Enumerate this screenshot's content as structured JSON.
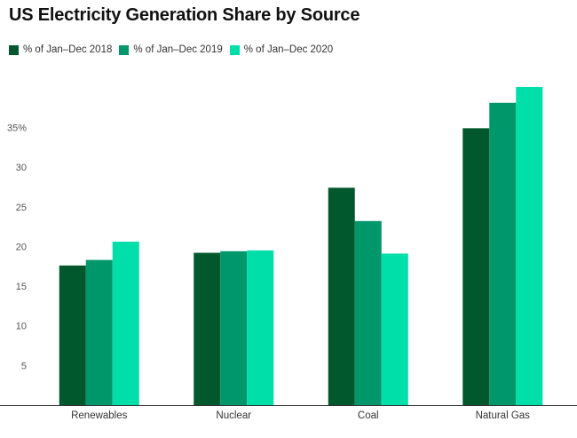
{
  "chart_data": {
    "type": "bar",
    "title": "US Electricity Generation Share by Source",
    "categories": [
      "Renewables",
      "Nuclear",
      "Coal",
      "Natural Gas"
    ],
    "series": [
      {
        "name": "% of Jan–Dec 2018",
        "color": "#00582c",
        "values": [
          17.6,
          19.2,
          27.4,
          34.9
        ]
      },
      {
        "name": "% of Jan–Dec 2019",
        "color": "#00976a",
        "values": [
          18.3,
          19.4,
          23.2,
          38.1
        ]
      },
      {
        "name": "% of Jan–Dec 2020",
        "color": "#00deaa",
        "values": [
          20.6,
          19.5,
          19.1,
          40.1
        ]
      }
    ],
    "yticks": [
      "5",
      "10",
      "15",
      "20",
      "25",
      "30",
      "35%"
    ],
    "ylim": [
      0,
      40
    ],
    "xlabel": "",
    "ylabel": "",
    "grid": false,
    "legend": "top-left"
  }
}
